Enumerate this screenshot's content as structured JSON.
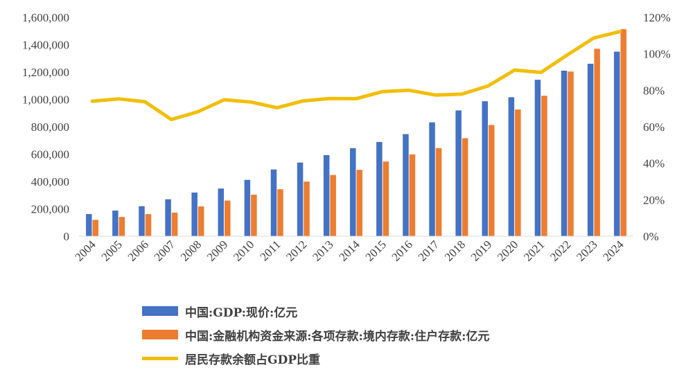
{
  "colors": {
    "gdp": "#4472C4",
    "deposits": "#ED7D31",
    "ratio": "#F2BE0A"
  },
  "chart_data": {
    "type": "bar",
    "categories": [
      "2004",
      "2005",
      "2006",
      "2007",
      "2008",
      "2009",
      "2010",
      "2011",
      "2012",
      "2013",
      "2014",
      "2015",
      "2016",
      "2017",
      "2018",
      "2019",
      "2020",
      "2021",
      "2022",
      "2023",
      "2024"
    ],
    "series": [
      {
        "name": "中国:GDP:现价:亿元",
        "type": "bar",
        "axis": "left",
        "color": "#4472C4",
        "values": [
          161840,
          187318,
          219438,
          270092,
          319245,
          348517,
          412119,
          487940,
          538580,
          592963,
          643563,
          688858,
          746395,
          832036,
          919281,
          986515,
          1015986,
          1143670,
          1210207,
          1260582,
          1349084
        ]
      },
      {
        "name": "中国:金融机构资金来源:各项存款:境内存款:住户存款:亿元",
        "type": "bar",
        "axis": "left",
        "color": "#ED7D31",
        "values": [
          119555,
          141051,
          161587,
          172534,
          217885,
          260772,
          303302,
          343636,
          399551,
          447602,
          485261,
          546078,
          597751,
          643768,
          716038,
          813017,
          925986,
          1026702,
          1203387,
          1369895,
          1513000
        ]
      },
      {
        "name": "居民存款余额占GDP比重",
        "type": "line",
        "axis": "right",
        "color": "#F2BE0A",
        "values": [
          0.74,
          0.753,
          0.737,
          0.64,
          0.682,
          0.748,
          0.736,
          0.704,
          0.742,
          0.755,
          0.754,
          0.793,
          0.8,
          0.774,
          0.779,
          0.824,
          0.911,
          0.898,
          0.994,
          1.087,
          1.122
        ]
      }
    ],
    "y_left": {
      "min": 0,
      "max": 1600000,
      "ticks": [
        "0",
        "200,000",
        "400,000",
        "600,000",
        "800,000",
        "1,000,000",
        "1,200,000",
        "1,400,000",
        "1,600,000"
      ]
    },
    "y_right": {
      "min": 0,
      "max": 1.2,
      "ticks": [
        "0%",
        "20%",
        "40%",
        "60%",
        "80%",
        "100%",
        "120%"
      ]
    },
    "legend_position": "bottom",
    "grid": false
  }
}
